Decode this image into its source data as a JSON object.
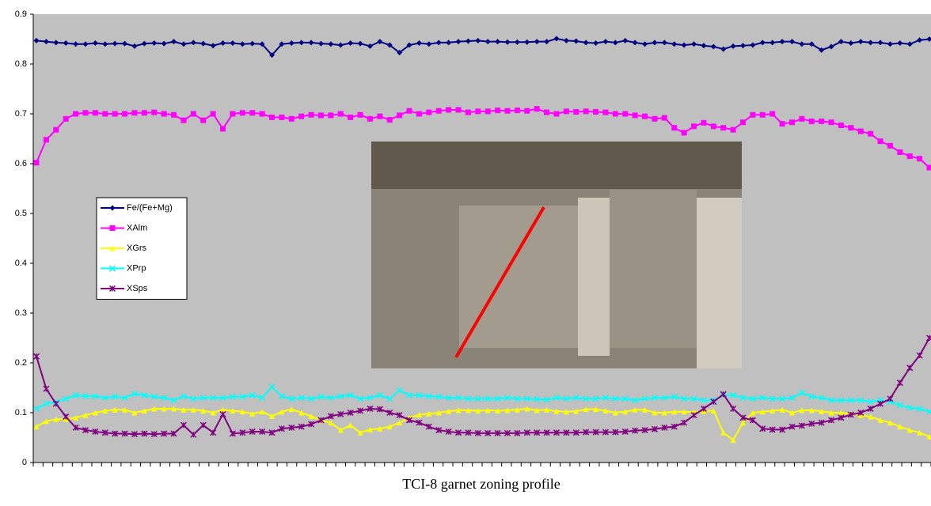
{
  "chart_data": {
    "type": "line",
    "title": "TCI-8 garnet zoning profile",
    "ylim": [
      0,
      0.9
    ],
    "yticks": [
      0,
      0.1,
      0.2,
      0.3,
      0.4,
      0.5,
      0.6,
      0.7,
      0.8,
      0.9
    ],
    "grid": false,
    "legend": "left",
    "series": [
      {
        "name": "Fe/(Fe+Mg)",
        "color": "#000080",
        "marker": "diamond",
        "values": [
          0.847,
          0.845,
          0.843,
          0.842,
          0.84,
          0.84,
          0.842,
          0.84,
          0.841,
          0.841,
          0.836,
          0.841,
          0.842,
          0.841,
          0.845,
          0.84,
          0.843,
          0.841,
          0.837,
          0.842,
          0.842,
          0.84,
          0.841,
          0.84,
          0.818,
          0.84,
          0.842,
          0.843,
          0.843,
          0.841,
          0.84,
          0.838,
          0.842,
          0.841,
          0.836,
          0.845,
          0.838,
          0.823,
          0.838,
          0.842,
          0.84,
          0.843,
          0.843,
          0.845,
          0.846,
          0.847,
          0.845,
          0.845,
          0.844,
          0.844,
          0.844,
          0.845,
          0.845,
          0.851,
          0.847,
          0.846,
          0.843,
          0.842,
          0.845,
          0.843,
          0.847,
          0.843,
          0.84,
          0.843,
          0.843,
          0.84,
          0.838,
          0.84,
          0.837,
          0.835,
          0.83,
          0.836,
          0.837,
          0.838,
          0.843,
          0.843,
          0.845,
          0.845,
          0.84,
          0.84,
          0.828,
          0.835,
          0.845,
          0.842,
          0.845,
          0.843,
          0.843,
          0.84,
          0.842,
          0.84,
          0.848,
          0.85
        ]
      },
      {
        "name": "XAlm",
        "color": "#ff00ff",
        "marker": "square",
        "values": [
          0.602,
          0.648,
          0.668,
          0.69,
          0.7,
          0.702,
          0.702,
          0.7,
          0.7,
          0.7,
          0.702,
          0.702,
          0.703,
          0.7,
          0.698,
          0.687,
          0.7,
          0.687,
          0.7,
          0.67,
          0.7,
          0.702,
          0.702,
          0.7,
          0.693,
          0.693,
          0.69,
          0.695,
          0.698,
          0.697,
          0.697,
          0.7,
          0.693,
          0.698,
          0.69,
          0.695,
          0.688,
          0.697,
          0.706,
          0.7,
          0.703,
          0.706,
          0.708,
          0.708,
          0.703,
          0.705,
          0.705,
          0.707,
          0.706,
          0.707,
          0.706,
          0.71,
          0.703,
          0.7,
          0.705,
          0.704,
          0.705,
          0.704,
          0.703,
          0.7,
          0.7,
          0.697,
          0.695,
          0.69,
          0.692,
          0.672,
          0.662,
          0.675,
          0.682,
          0.675,
          0.672,
          0.668,
          0.683,
          0.698,
          0.698,
          0.7,
          0.68,
          0.683,
          0.69,
          0.685,
          0.685,
          0.683,
          0.677,
          0.672,
          0.665,
          0.66,
          0.645,
          0.636,
          0.623,
          0.615,
          0.61,
          0.592
        ]
      },
      {
        "name": "XGrs",
        "color": "#ffff00",
        "marker": "triangle",
        "values": [
          0.072,
          0.083,
          0.087,
          0.087,
          0.09,
          0.095,
          0.1,
          0.104,
          0.106,
          0.106,
          0.1,
          0.104,
          0.108,
          0.108,
          0.108,
          0.106,
          0.106,
          0.104,
          0.1,
          0.106,
          0.104,
          0.102,
          0.098,
          0.102,
          0.093,
          0.102,
          0.107,
          0.1,
          0.093,
          0.085,
          0.08,
          0.065,
          0.075,
          0.06,
          0.066,
          0.068,
          0.072,
          0.08,
          0.09,
          0.096,
          0.098,
          0.1,
          0.103,
          0.105,
          0.105,
          0.104,
          0.105,
          0.104,
          0.105,
          0.106,
          0.108,
          0.105,
          0.106,
          0.103,
          0.102,
          0.103,
          0.107,
          0.107,
          0.104,
          0.1,
          0.102,
          0.106,
          0.106,
          0.1,
          0.1,
          0.102,
          0.102,
          0.101,
          0.103,
          0.104,
          0.06,
          0.045,
          0.08,
          0.1,
          0.102,
          0.104,
          0.106,
          0.1,
          0.105,
          0.105,
          0.103,
          0.1,
          0.1,
          0.098,
          0.095,
          0.092,
          0.085,
          0.08,
          0.072,
          0.065,
          0.06,
          0.052
        ]
      },
      {
        "name": "XPrp",
        "color": "#00ffff",
        "marker": "x",
        "values": [
          0.108,
          0.118,
          0.122,
          0.128,
          0.135,
          0.133,
          0.133,
          0.13,
          0.132,
          0.13,
          0.138,
          0.135,
          0.132,
          0.13,
          0.125,
          0.133,
          0.128,
          0.13,
          0.13,
          0.13,
          0.132,
          0.132,
          0.135,
          0.13,
          0.152,
          0.133,
          0.128,
          0.13,
          0.128,
          0.132,
          0.13,
          0.133,
          0.135,
          0.128,
          0.13,
          0.135,
          0.128,
          0.145,
          0.135,
          0.135,
          0.133,
          0.132,
          0.13,
          0.13,
          0.128,
          0.128,
          0.128,
          0.128,
          0.13,
          0.128,
          0.128,
          0.127,
          0.126,
          0.13,
          0.128,
          0.13,
          0.128,
          0.128,
          0.13,
          0.128,
          0.128,
          0.125,
          0.128,
          0.13,
          0.13,
          0.132,
          0.128,
          0.128,
          0.125,
          0.125,
          0.135,
          0.135,
          0.13,
          0.128,
          0.13,
          0.128,
          0.128,
          0.13,
          0.14,
          0.132,
          0.13,
          0.125,
          0.125,
          0.125,
          0.125,
          0.122,
          0.125,
          0.122,
          0.115,
          0.11,
          0.108,
          0.102
        ]
      },
      {
        "name": "XSps",
        "color": "#800080",
        "marker": "star",
        "values": [
          0.213,
          0.148,
          0.118,
          0.092,
          0.07,
          0.065,
          0.062,
          0.06,
          0.058,
          0.058,
          0.057,
          0.058,
          0.057,
          0.058,
          0.058,
          0.075,
          0.056,
          0.075,
          0.06,
          0.097,
          0.058,
          0.06,
          0.062,
          0.062,
          0.06,
          0.068,
          0.07,
          0.072,
          0.077,
          0.085,
          0.093,
          0.097,
          0.1,
          0.104,
          0.108,
          0.107,
          0.1,
          0.095,
          0.085,
          0.08,
          0.072,
          0.065,
          0.062,
          0.06,
          0.06,
          0.059,
          0.059,
          0.059,
          0.059,
          0.059,
          0.06,
          0.06,
          0.06,
          0.06,
          0.06,
          0.06,
          0.061,
          0.061,
          0.061,
          0.061,
          0.062,
          0.064,
          0.065,
          0.067,
          0.07,
          0.072,
          0.08,
          0.095,
          0.108,
          0.122,
          0.137,
          0.108,
          0.09,
          0.085,
          0.068,
          0.066,
          0.066,
          0.072,
          0.074,
          0.078,
          0.08,
          0.085,
          0.09,
          0.096,
          0.1,
          0.108,
          0.118,
          0.128,
          0.16,
          0.19,
          0.215,
          0.25
        ]
      }
    ]
  }
}
